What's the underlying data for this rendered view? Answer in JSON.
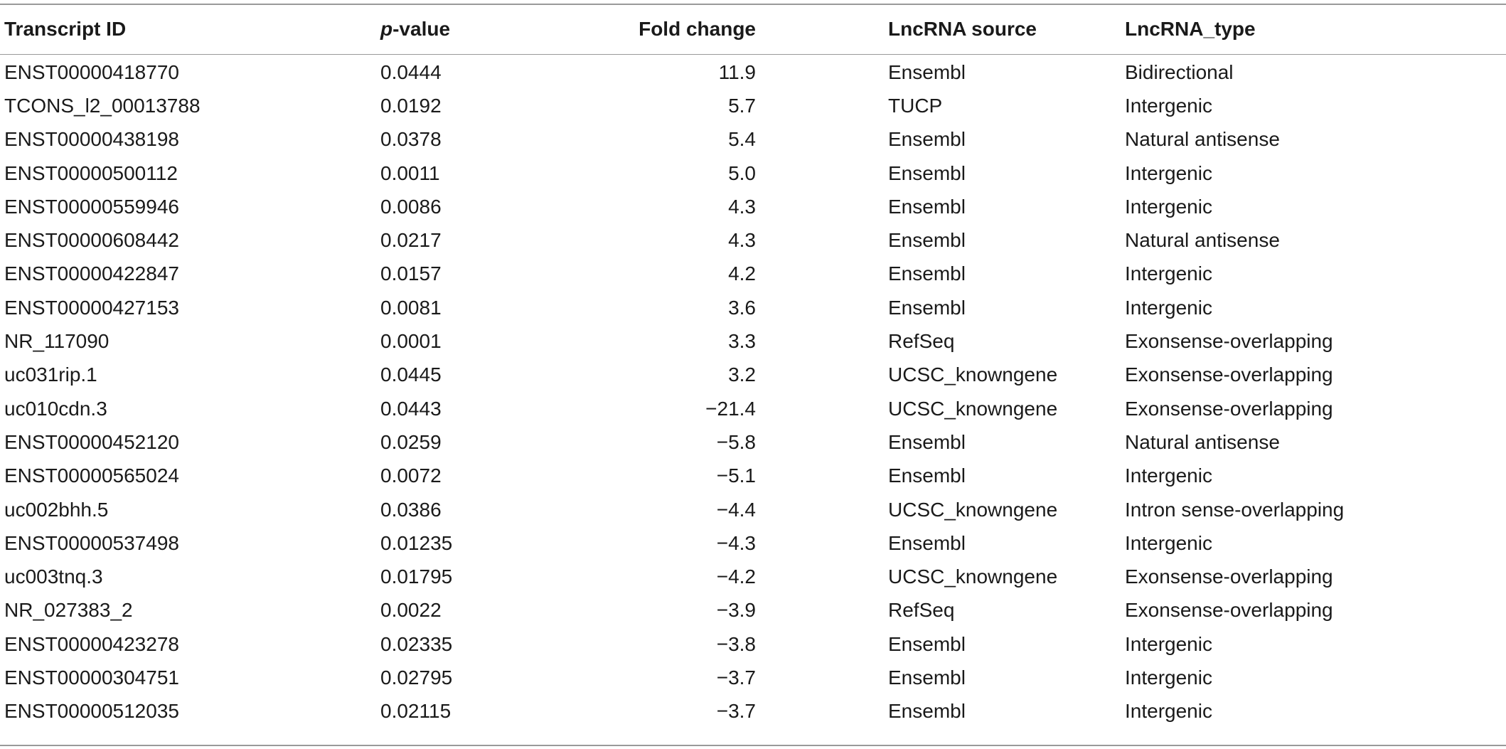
{
  "table": {
    "headers": {
      "transcript_id": "Transcript ID",
      "p_value_prefix": "p",
      "p_value_suffix": "-value",
      "fold_change": "Fold change",
      "lncrna_source": "LncRNA source",
      "lncrna_type": "LncRNA_type"
    },
    "rows": [
      {
        "id": "ENST00000418770",
        "p": "0.0444",
        "fc": "11.9",
        "source": "Ensembl",
        "type": "Bidirectional"
      },
      {
        "id": "TCONS_l2_00013788",
        "p": "0.0192",
        "fc": "5.7",
        "source": "TUCP",
        "type": "Intergenic"
      },
      {
        "id": "ENST00000438198",
        "p": "0.0378",
        "fc": "5.4",
        "source": "Ensembl",
        "type": "Natural antisense"
      },
      {
        "id": "ENST00000500112",
        "p": "0.0011",
        "fc": "5.0",
        "source": "Ensembl",
        "type": "Intergenic"
      },
      {
        "id": "ENST00000559946",
        "p": "0.0086",
        "fc": "4.3",
        "source": "Ensembl",
        "type": "Intergenic"
      },
      {
        "id": "ENST00000608442",
        "p": "0.0217",
        "fc": "4.3",
        "source": "Ensembl",
        "type": "Natural antisense"
      },
      {
        "id": "ENST00000422847",
        "p": "0.0157",
        "fc": "4.2",
        "source": "Ensembl",
        "type": "Intergenic"
      },
      {
        "id": "ENST00000427153",
        "p": "0.0081",
        "fc": "3.6",
        "source": "Ensembl",
        "type": "Intergenic"
      },
      {
        "id": "NR_117090",
        "p": "0.0001",
        "fc": "3.3",
        "source": "RefSeq",
        "type": "Exonsense-overlapping"
      },
      {
        "id": "uc031rip.1",
        "p": "0.0445",
        "fc": "3.2",
        "source": "UCSC_knowngene",
        "type": "Exonsense-overlapping"
      },
      {
        "id": "uc010cdn.3",
        "p": "0.0443",
        "fc": "−21.4",
        "source": "UCSC_knowngene",
        "type": "Exonsense-overlapping"
      },
      {
        "id": "ENST00000452120",
        "p": "0.0259",
        "fc": "−5.8",
        "source": "Ensembl",
        "type": "Natural antisense"
      },
      {
        "id": "ENST00000565024",
        "p": "0.0072",
        "fc": "−5.1",
        "source": "Ensembl",
        "type": "Intergenic"
      },
      {
        "id": "uc002bhh.5",
        "p": "0.0386",
        "fc": "−4.4",
        "source": "UCSC_knowngene",
        "type": "Intron sense-overlapping"
      },
      {
        "id": "ENST00000537498",
        "p": "0.01235",
        "fc": "−4.3",
        "source": "Ensembl",
        "type": "Intergenic"
      },
      {
        "id": "uc003tnq.3",
        "p": "0.01795",
        "fc": "−4.2",
        "source": "UCSC_knowngene",
        "type": "Exonsense-overlapping"
      },
      {
        "id": "NR_027383_2",
        "p": "0.0022",
        "fc": "−3.9",
        "source": "RefSeq",
        "type": "Exonsense-overlapping"
      },
      {
        "id": "ENST00000423278",
        "p": "0.02335",
        "fc": "−3.8",
        "source": "Ensembl",
        "type": "Intergenic"
      },
      {
        "id": "ENST00000304751",
        "p": "0.02795",
        "fc": "−3.7",
        "source": "Ensembl",
        "type": "Intergenic"
      },
      {
        "id": "ENST00000512035",
        "p": "0.02115",
        "fc": "−3.7",
        "source": "Ensembl",
        "type": "Intergenic"
      }
    ]
  }
}
